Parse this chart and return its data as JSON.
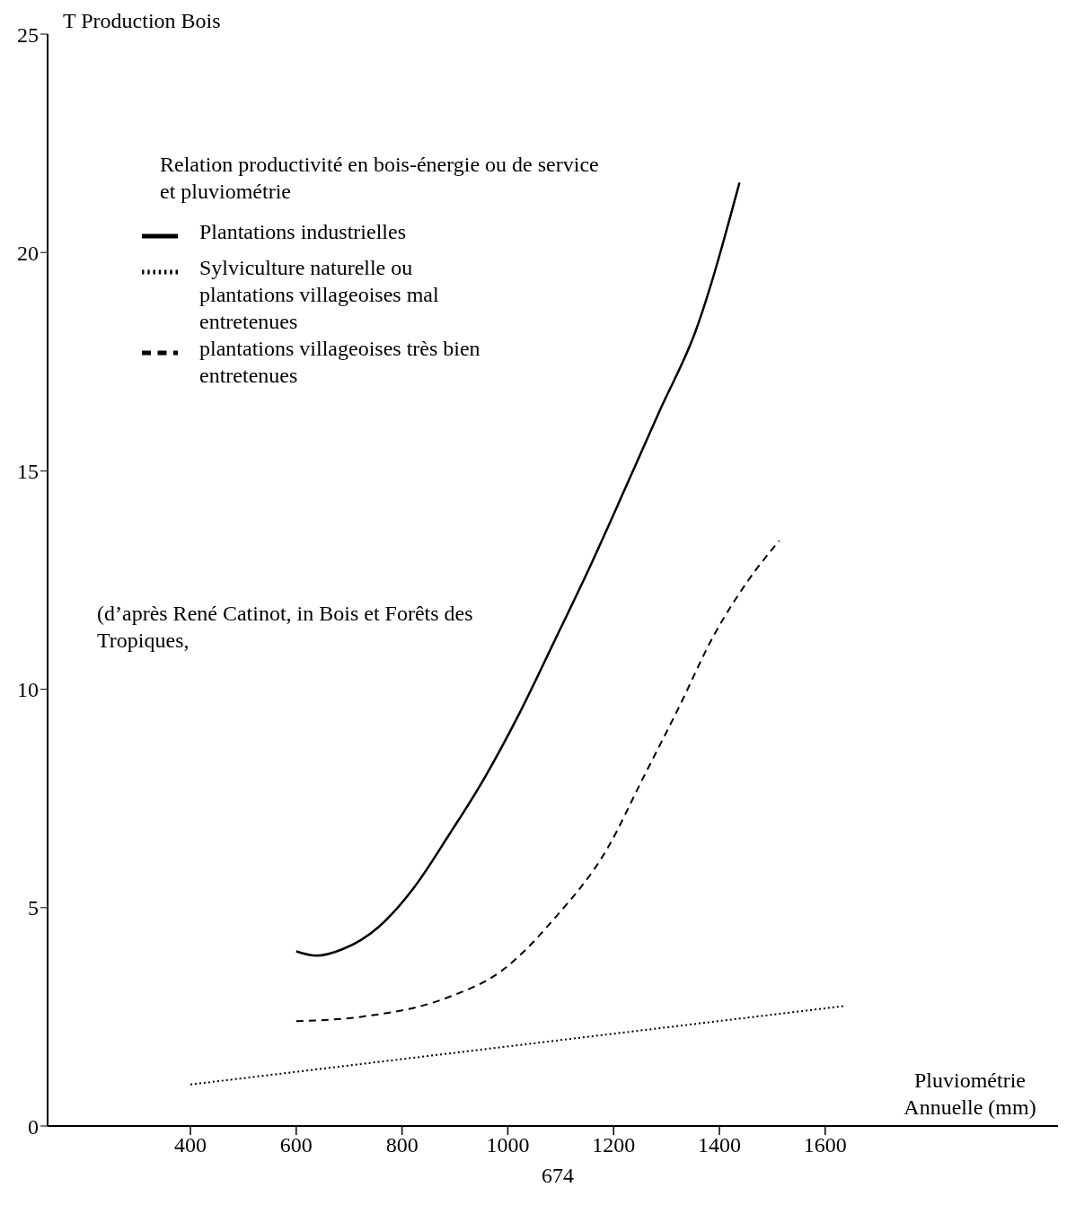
{
  "chart_data": {
    "type": "line",
    "ylabel": "T Production Bois",
    "xlabel": "Pluviométrie Annuelle (mm)",
    "legend_title": "Relation productivité en bois-énergie ou de service et pluviométrie",
    "xlim": [
      130,
      2040
    ],
    "xticks": [
      400,
      600,
      800,
      1000,
      1200,
      1400,
      1600
    ],
    "ylim": [
      0,
      25
    ],
    "yticks": [
      0,
      5,
      10,
      15,
      20,
      25
    ],
    "grid": false,
    "legend": "top left",
    "marker": "none",
    "series": [
      {
        "name": "Plantations industrielles",
        "color": "#000000",
        "line_style": "solid",
        "x": [
          600,
          638,
          688,
          755,
          822,
          888,
          955,
          1022,
          1088,
          1155,
          1222,
          1288,
          1355,
          1438
        ],
        "values": [
          4.0,
          3.9,
          4.05,
          4.55,
          5.45,
          6.65,
          7.95,
          9.45,
          11.1,
          12.8,
          14.6,
          16.4,
          18.2,
          21.6
        ]
      },
      {
        "name": "plantations villageoises très bien entretenues",
        "color": "#000000",
        "line_style": "dashed",
        "x": [
          600,
          722,
          888,
          988,
          1088,
          1188,
          1255,
          1322,
          1388,
          1455,
          1513
        ],
        "values": [
          2.4,
          2.5,
          2.95,
          3.55,
          4.75,
          6.35,
          7.95,
          9.55,
          11.2,
          12.5,
          13.4
        ]
      },
      {
        "name": "Sylviculture naturelle ou plantations villageoises mal entretenues",
        "color": "#000000",
        "line_style": "dotted",
        "x": [
          400,
          1638
        ],
        "values": [
          0.95,
          2.75
        ]
      }
    ],
    "annotations": [
      "(d’après René Catinot, in Bois et Forêts des Tropiques,",
      "674"
    ]
  }
}
